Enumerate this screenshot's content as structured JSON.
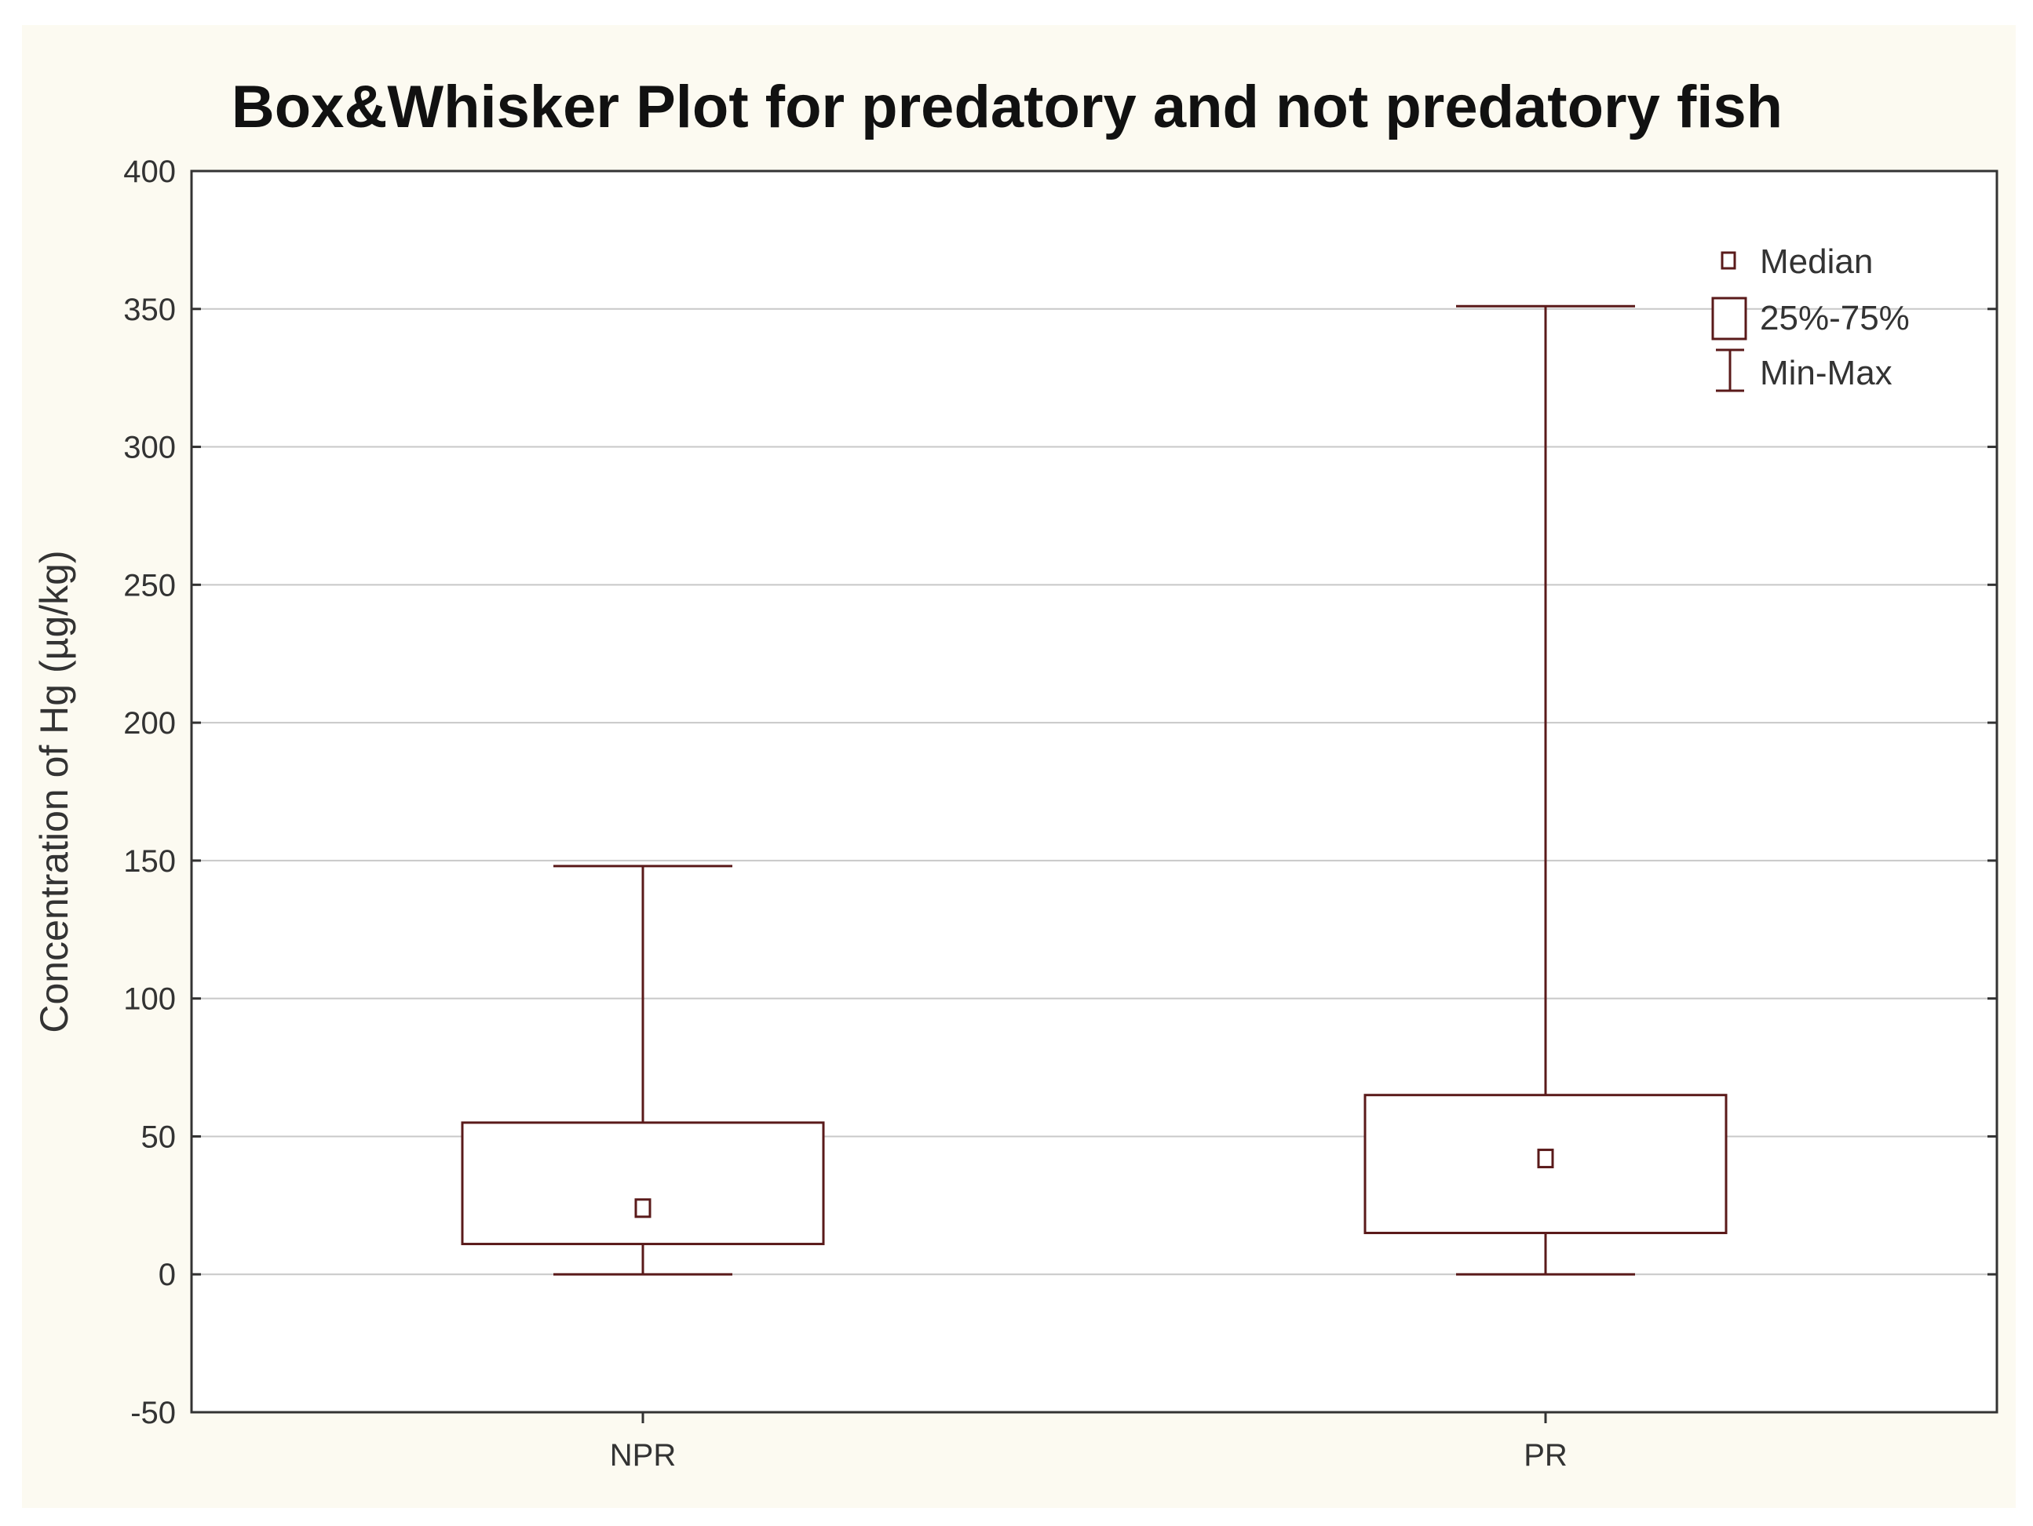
{
  "chart_data": {
    "type": "box",
    "title": "Box&Whisker Plot for predatory and not predatory fish",
    "xlabel": "",
    "ylabel": "Concentration of Hg (µg/kg)",
    "ylim": [
      -50,
      400
    ],
    "yticks": [
      "-50",
      "0",
      "50",
      "100",
      "150",
      "200",
      "250",
      "300",
      "350",
      "400"
    ],
    "grid": true,
    "legend_position": "top-right",
    "legend": [
      "Median",
      "25%-75%",
      "Min-Max"
    ],
    "categories": [
      "NPR",
      "PR"
    ],
    "boxes": [
      {
        "category": "NPR",
        "min": 0,
        "q1": 11,
        "median": 24,
        "q3": 55,
        "max": 148
      },
      {
        "category": "PR",
        "min": 0,
        "q1": 15,
        "median": 42,
        "q3": 65,
        "max": 351
      }
    ],
    "colors": {
      "box": "#5a1a1a",
      "grid": "#c8c8c8",
      "frame": "#333333",
      "background": "#fcfaf1"
    }
  }
}
